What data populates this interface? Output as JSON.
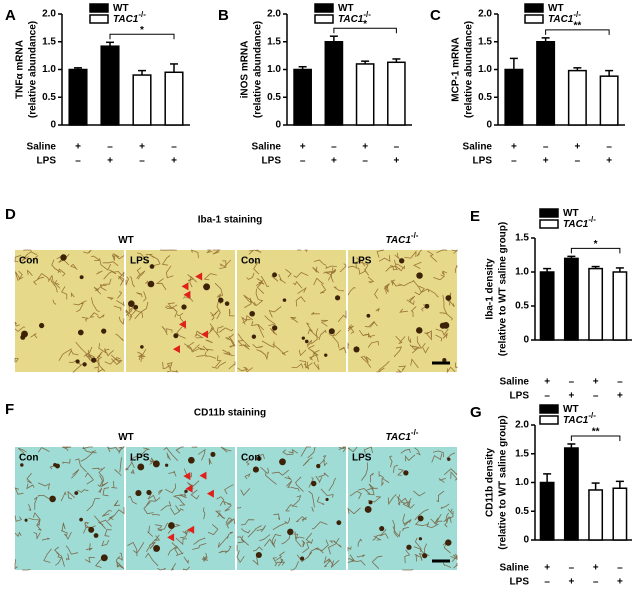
{
  "chart_data": [
    {
      "type": "bar",
      "panel_label": "A",
      "ylabel": [
        "TNFα mRNA",
        "(relative abundance)"
      ],
      "categories": [
        null,
        null,
        null,
        null
      ],
      "series": [
        {
          "name": "WT",
          "color": "#000000",
          "values": [
            1.0,
            1.42,
            null,
            null
          ],
          "errors": [
            0.03,
            0.07,
            null,
            null
          ]
        },
        {
          "name": "TAC1",
          "name_sup": "-/-",
          "color": "#ffffff",
          "values": [
            null,
            null,
            0.9,
            0.95
          ],
          "errors": [
            null,
            null,
            0.08,
            0.15
          ]
        }
      ],
      "ylim": [
        0,
        2
      ],
      "yticks": [
        0,
        0.5,
        {
          "value": 1,
          "label": "1.0"
        },
        1.5,
        {
          "value": 2,
          "label": "2.0"
        }
      ],
      "significance": "*",
      "conditions": [
        {
          "label": "Saline",
          "signs": [
            "+",
            "–",
            "+",
            "–"
          ]
        },
        {
          "label": "LPS",
          "signs": [
            "–",
            "+",
            "–",
            "+"
          ]
        }
      ]
    },
    {
      "type": "bar",
      "panel_label": "B",
      "ylabel": [
        "iNOS mRNA",
        "(relative abundance)"
      ],
      "categories": [
        null,
        null,
        null,
        null
      ],
      "series": [
        {
          "name": "WT",
          "color": "#000000",
          "values": [
            1.0,
            1.5,
            null,
            null
          ],
          "errors": [
            0.05,
            0.1,
            null,
            null
          ]
        },
        {
          "name": "TAC1",
          "name_sup": "-/-",
          "color": "#ffffff",
          "values": [
            null,
            null,
            1.1,
            1.13
          ],
          "errors": [
            null,
            null,
            0.05,
            0.06
          ]
        }
      ],
      "ylim": [
        0,
        2
      ],
      "yticks": [
        0,
        0.5,
        {
          "value": 1,
          "label": "1.0"
        },
        1.5,
        {
          "value": 2,
          "label": "2.0"
        }
      ],
      "significance": "*",
      "conditions": [
        {
          "label": "Saline",
          "signs": [
            "+",
            "–",
            "+",
            "–"
          ]
        },
        {
          "label": "LPS",
          "signs": [
            "–",
            "+",
            "–",
            "+"
          ]
        }
      ]
    },
    {
      "type": "bar",
      "panel_label": "C",
      "ylabel": [
        "MCP-1 mRNA",
        "(relative abundance)"
      ],
      "categories": [
        null,
        null,
        null,
        null
      ],
      "series": [
        {
          "name": "WT",
          "color": "#000000",
          "values": [
            1.0,
            1.5,
            null,
            null
          ],
          "errors": [
            0.2,
            0.07,
            null,
            null
          ]
        },
        {
          "name": "TAC1",
          "name_sup": "-/-",
          "color": "#ffffff",
          "values": [
            null,
            null,
            0.98,
            0.88
          ],
          "errors": [
            null,
            null,
            0.05,
            0.1
          ]
        }
      ],
      "ylim": [
        0,
        2
      ],
      "yticks": [
        0,
        0.5,
        {
          "value": 1,
          "label": "1.0"
        },
        1.5,
        {
          "value": 2,
          "label": "2.0"
        }
      ],
      "significance": "**",
      "conditions": [
        {
          "label": "Saline",
          "signs": [
            "+",
            "–",
            "+",
            "–"
          ]
        },
        {
          "label": "LPS",
          "signs": [
            "–",
            "+",
            "–",
            "+"
          ]
        }
      ]
    },
    {
      "type": "bar",
      "panel_label": "E",
      "ylabel": [
        "Iba-1 density",
        "(relative to WT saline group)"
      ],
      "categories": [
        null,
        null,
        null,
        null
      ],
      "series": [
        {
          "name": "WT",
          "color": "#000000",
          "values": [
            1.0,
            1.2,
            null,
            null
          ],
          "errors": [
            0.05,
            0.03,
            null,
            null
          ]
        },
        {
          "name": "TAC1",
          "name_sup": "-/-",
          "color": "#ffffff",
          "values": [
            null,
            null,
            1.05,
            1.0
          ],
          "errors": [
            null,
            null,
            0.03,
            0.06
          ]
        }
      ],
      "ylim": [
        0,
        1.5
      ],
      "yticks": [
        0,
        0.5,
        {
          "value": 1,
          "label": "1.0"
        },
        1.5
      ],
      "significance": "*",
      "conditions": [
        {
          "label": "Saline",
          "signs": [
            "+",
            "–",
            "+",
            "–"
          ]
        },
        {
          "label": "LPS",
          "signs": [
            "–",
            "+",
            "–",
            "+"
          ]
        }
      ]
    },
    {
      "type": "bar",
      "panel_label": "G",
      "ylabel": [
        "CD11b density",
        "(relative to WT saline group)"
      ],
      "categories": [
        null,
        null,
        null,
        null
      ],
      "series": [
        {
          "name": "WT",
          "color": "#000000",
          "values": [
            1.0,
            1.6,
            null,
            null
          ],
          "errors": [
            0.15,
            0.07,
            null,
            null
          ]
        },
        {
          "name": "TAC1",
          "name_sup": "-/-",
          "color": "#ffffff",
          "values": [
            null,
            null,
            0.87,
            0.9
          ],
          "errors": [
            null,
            null,
            0.12,
            0.12
          ]
        }
      ],
      "ylim": [
        0,
        2
      ],
      "yticks": [
        0,
        0.5,
        {
          "value": 1,
          "label": "1.0"
        },
        1.5,
        {
          "value": 2,
          "label": "2.0"
        }
      ],
      "significance": "**",
      "conditions": [
        {
          "label": "Saline",
          "signs": [
            "+",
            "–",
            "+",
            "–"
          ]
        },
        {
          "label": "LPS",
          "signs": [
            "–",
            "+",
            "–",
            "+"
          ]
        }
      ]
    }
  ],
  "micrographs": [
    {
      "panel_label": "D",
      "title": "Iba-1 staining",
      "groups": [
        {
          "label": "WT"
        },
        {
          "label": "TAC1",
          "label_sup": "-/-"
        }
      ],
      "tiles": [
        "Con",
        "LPS",
        "Con",
        "LPS"
      ]
    },
    {
      "panel_label": "F",
      "title": "CD11b staining",
      "groups": [
        {
          "label": "WT"
        },
        {
          "label": "TAC1",
          "label_sup": "-/-"
        }
      ],
      "tiles": [
        "Con",
        "LPS",
        "Con",
        "LPS"
      ]
    }
  ]
}
